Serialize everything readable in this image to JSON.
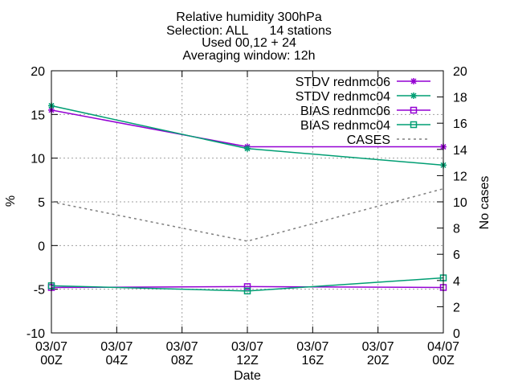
{
  "chart_data": {
    "type": "line",
    "title_lines": [
      "Relative humidity 300hPa",
      "Selection: ALL      14 stations",
      "Used 00,12 + 24",
      "Averaging window: 12h"
    ],
    "xlabel": "Date",
    "ylabel": "%",
    "y2label": "No cases",
    "x_categories": [
      [
        "03/07",
        "00Z"
      ],
      [
        "03/07",
        "04Z"
      ],
      [
        "03/07",
        "08Z"
      ],
      [
        "03/07",
        "12Z"
      ],
      [
        "03/07",
        "16Z"
      ],
      [
        "03/07",
        "20Z"
      ],
      [
        "04/07",
        "00Z"
      ]
    ],
    "x_hours": [
      0,
      4,
      8,
      12,
      16,
      20,
      24
    ],
    "ylim": [
      -10,
      20
    ],
    "yticks": [
      -10,
      -5,
      0,
      5,
      10,
      15,
      20
    ],
    "y2lim": [
      0,
      20
    ],
    "y2ticks": [
      0,
      2,
      4,
      6,
      8,
      10,
      12,
      14,
      16,
      18,
      20
    ],
    "grid": true,
    "legend_position": "top-right",
    "series": [
      {
        "name": "STDV rednmc06",
        "axis": "y",
        "color": "#9400d3",
        "marker": "star",
        "dash": "",
        "x": [
          0,
          12,
          24
        ],
        "values": [
          15.5,
          11.3,
          11.3
        ]
      },
      {
        "name": "STDV rednmc04",
        "axis": "y",
        "color": "#009e73",
        "marker": "star",
        "dash": "",
        "x": [
          0,
          12,
          24
        ],
        "values": [
          16.0,
          11.1,
          9.2
        ]
      },
      {
        "name": "BIAS rednmc06",
        "axis": "y",
        "color": "#9400d3",
        "marker": "square",
        "dash": "",
        "x": [
          0,
          12,
          24
        ],
        "values": [
          -4.8,
          -4.7,
          -4.8
        ]
      },
      {
        "name": "BIAS rednmc04",
        "axis": "y",
        "color": "#009e73",
        "marker": "square",
        "dash": "",
        "x": [
          0,
          12,
          24
        ],
        "values": [
          -4.6,
          -5.2,
          -3.7
        ]
      },
      {
        "name": "CASES",
        "axis": "y2",
        "color": "#808080",
        "marker": "none",
        "dash": "3,4",
        "x": [
          0,
          12,
          24
        ],
        "values": [
          10,
          7,
          11
        ]
      }
    ]
  }
}
